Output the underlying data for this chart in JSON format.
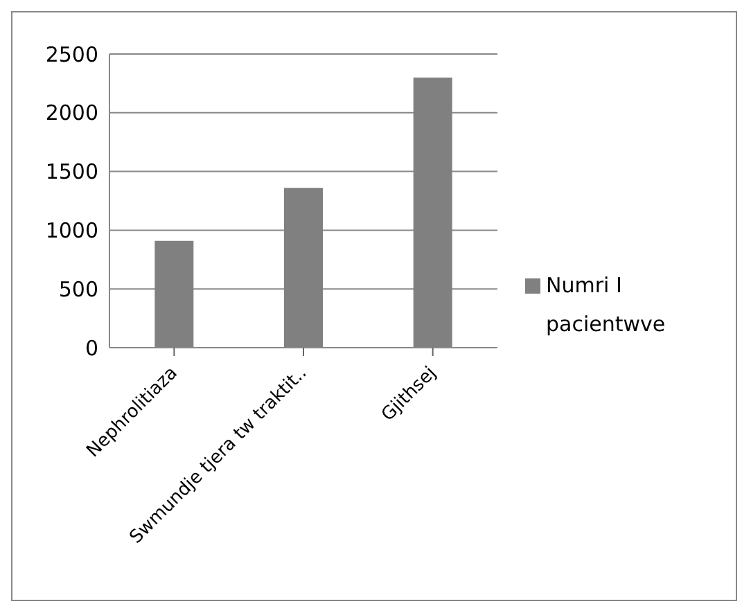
{
  "chart_data": {
    "type": "bar",
    "categories": [
      "Nephrolitiaza",
      "Swmundje tjera tw traktit..",
      "Gjithsej"
    ],
    "series": [
      {
        "name": "Numri I pacientwve",
        "color": "#808080",
        "values": [
          910,
          1360,
          2300
        ]
      }
    ],
    "ylim": [
      0,
      2500
    ],
    "yticks": [
      0,
      500,
      1000,
      1500,
      2000,
      2500
    ],
    "grid": "y",
    "legend": "right"
  }
}
